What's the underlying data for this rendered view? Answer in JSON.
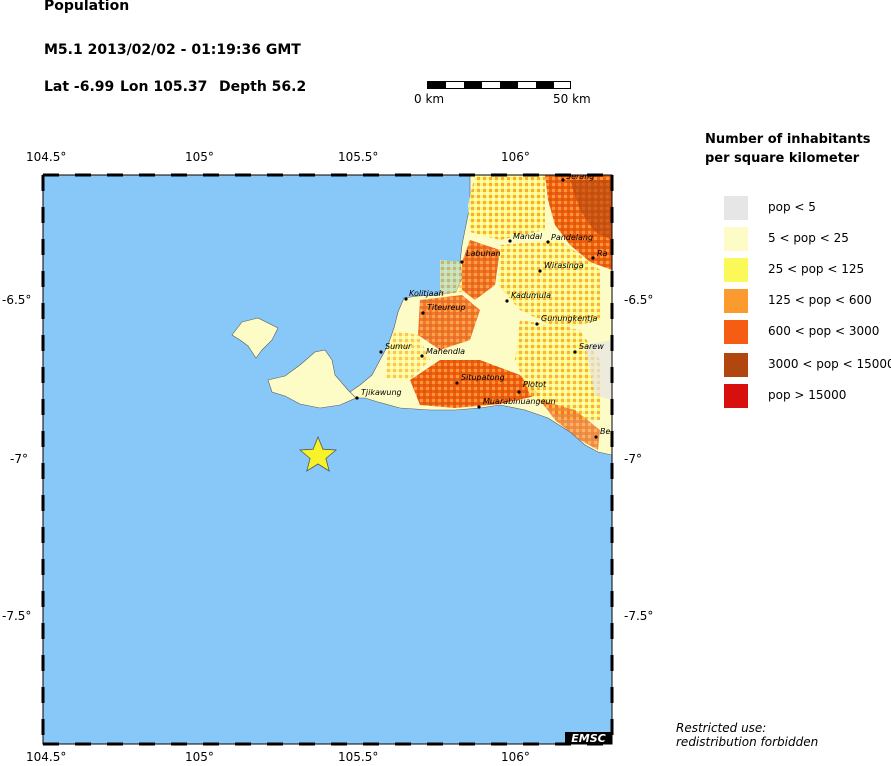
{
  "header": {
    "title": "Population",
    "event": "M5.1  2013/02/02 - 01:19:36 GMT",
    "lat": "Lat -6.99",
    "lon": "Lon 105.37",
    "depth": "Depth  56.2"
  },
  "scale_bar": {
    "left_label": "0 km",
    "right_label": "50 km"
  },
  "axes": {
    "top_ticks": [
      "104.5°",
      "105°",
      "105.5°",
      "106°"
    ],
    "bottom_ticks": [
      "104.5°",
      "105°",
      "105.5°",
      "106°"
    ],
    "left_ticks": [
      "-6.5°",
      "-7°",
      "-7.5°"
    ],
    "right_ticks": [
      "-6.5°",
      "-7°",
      "-7.5°"
    ]
  },
  "legend": {
    "title_line1": "Number of inhabitants",
    "title_line2": "per square kilometer",
    "items": [
      {
        "label": "pop < 5",
        "color": "#e6e6e6"
      },
      {
        "label": "5 < pop < 25",
        "color": "#fdfcc6"
      },
      {
        "label": "25 < pop < 125",
        "color": "#fbf85a"
      },
      {
        "label": "125 < pop < 600",
        "color": "#fb9a2e"
      },
      {
        "label": "600 < pop < 3000",
        "color": "#f65d14"
      },
      {
        "label": "3000 < pop < 15000",
        "color": "#b2460f"
      },
      {
        "label": "pop > 15000",
        "color": "#d70f0f"
      }
    ]
  },
  "map": {
    "ocean_color": "#88c8f8",
    "epicenter": {
      "lon": 105.37,
      "lat": -6.99,
      "symbol": "star-icon",
      "color": "#f8f22a"
    },
    "towns": [
      {
        "name": "Cilegon",
        "label": "Serang"
      },
      {
        "name": "Mandal",
        "label": "Mandal"
      },
      {
        "name": "Pandeglang",
        "label": "Pandelang"
      },
      {
        "name": "Ra",
        "label": "Ra"
      },
      {
        "name": "Labuhan",
        "label": "Labuhan"
      },
      {
        "name": "Wirasinga",
        "label": "Wirasinga"
      },
      {
        "name": "Kolitjaah",
        "label": "Kolitjaah"
      },
      {
        "name": "Kadumula",
        "label": "Kadumula"
      },
      {
        "name": "Titeureup",
        "label": "Titeureup"
      },
      {
        "name": "Gunungkentjana",
        "label": "Gunungkentja"
      },
      {
        "name": "Sumur",
        "label": "Sumur"
      },
      {
        "name": "Mahendla",
        "label": "Mahendla"
      },
      {
        "name": "Sarewa",
        "label": "Sarew"
      },
      {
        "name": "Situpatong",
        "label": "Situpatong"
      },
      {
        "name": "Plotot",
        "label": "Plotot"
      },
      {
        "name": "Tjikawung",
        "label": "Tjikawung"
      },
      {
        "name": "Muarabinuangeun",
        "label": "Muarabinuangeun"
      },
      {
        "name": "Be",
        "label": "Be"
      }
    ],
    "emsc_label": "EMSC"
  },
  "footer": {
    "note_line1": "Restricted use:",
    "note_line2": "redistribution forbidden"
  }
}
